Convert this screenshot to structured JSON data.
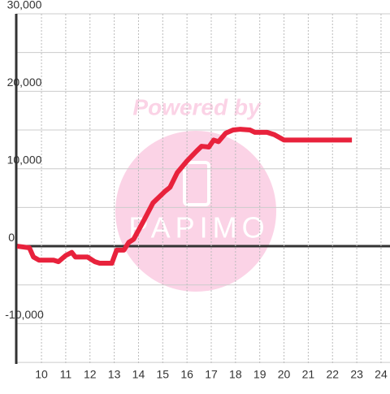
{
  "chart_data": {
    "type": "line",
    "watermark": "Powered by",
    "watermark_logo": "PAPIMO",
    "x": [
      9,
      9.5,
      9.67,
      9.9,
      10.5,
      10.7,
      11,
      11.25,
      11.4,
      11.9,
      12.2,
      12.4,
      12.9,
      13.1,
      13.4,
      13.6,
      13.8,
      14.2,
      14.6,
      15.1,
      15.3,
      15.6,
      16,
      16.4,
      16.6,
      16.9,
      17.1,
      17.3,
      17.6,
      17.9,
      18.2,
      18.6,
      18.8,
      19.3,
      19.6,
      20,
      22.8
    ],
    "series": [
      {
        "color": "#e8223c",
        "values": [
          0,
          -200,
          -1400,
          -1800,
          -1800,
          -2000,
          -1200,
          -800,
          -1400,
          -1400,
          -2000,
          -2200,
          -2200,
          -500,
          -500,
          500,
          900,
          3200,
          5600,
          7100,
          7600,
          9500,
          11000,
          12300,
          12900,
          12800,
          13700,
          13500,
          14600,
          15000,
          15100,
          15000,
          14700,
          14700,
          14400,
          13700,
          13700
        ]
      }
    ],
    "xlim": [
      8.96,
      24.37
    ],
    "xticks": [
      10,
      11,
      12,
      13,
      14,
      15,
      16,
      17,
      18,
      19,
      20,
      21,
      22,
      23,
      24
    ],
    "ylim": [
      -15200,
      30000
    ],
    "yticks": [
      {
        "value": 30000,
        "label": "30,000"
      },
      {
        "value": 20000,
        "label": "20,000"
      },
      {
        "value": 10000,
        "label": "10,000"
      },
      0,
      {
        "value": -10000,
        "label": "-10,000"
      }
    ],
    "minor_yticks": [
      25000,
      15000,
      5000,
      -5000,
      -15000
    ],
    "grid": true
  }
}
